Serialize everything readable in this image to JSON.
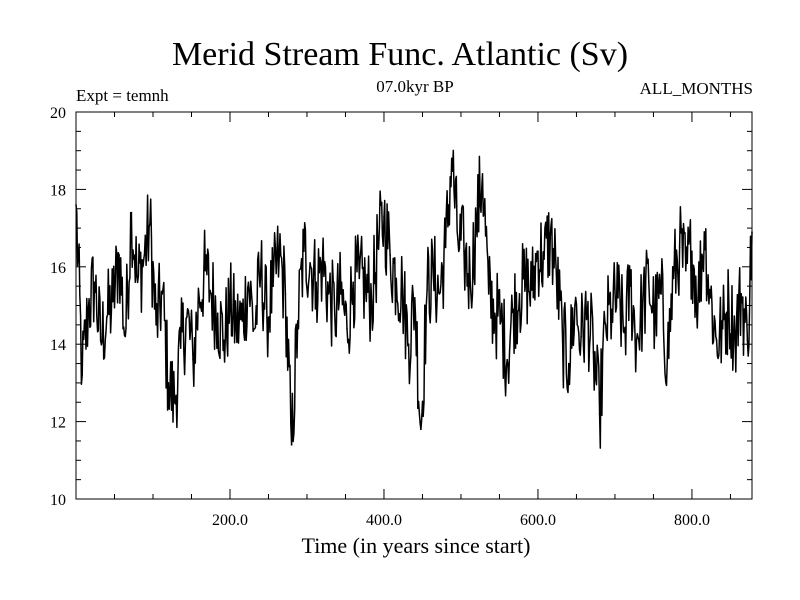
{
  "chart_data": {
    "type": "line",
    "title": "Merid Stream Func. Atlantic (Sv)",
    "subtitle": "07.0kyr BP",
    "left_label": "Expt = temnh",
    "right_label": "ALL_MONTHS",
    "xlabel": "Time (in years since start)",
    "ylabel": "",
    "xlim": [
      0,
      878
    ],
    "ylim": [
      10,
      20
    ],
    "xticks_labeled": [
      200,
      400,
      600,
      800
    ],
    "xtick_labels": [
      "200.0",
      "400.0",
      "600.0",
      "800.0"
    ],
    "yticks": [
      10,
      12,
      14,
      16,
      18,
      20
    ],
    "ytick_labels": [
      "10",
      "12",
      "14",
      "16",
      "18",
      "20"
    ],
    "series": [
      {
        "name": "Atlantic meridional stream function",
        "x": [
          0,
          8,
          16,
          24,
          32,
          40,
          48,
          56,
          64,
          72,
          80,
          88,
          96,
          104,
          112,
          120,
          128,
          136,
          144,
          152,
          160,
          168,
          176,
          184,
          192,
          200,
          208,
          216,
          224,
          232,
          240,
          248,
          256,
          264,
          272,
          280,
          288,
          296,
          304,
          312,
          320,
          328,
          336,
          344,
          352,
          360,
          368,
          376,
          384,
          392,
          400,
          408,
          416,
          424,
          432,
          440,
          448,
          456,
          464,
          472,
          480,
          488,
          496,
          504,
          512,
          520,
          528,
          536,
          544,
          552,
          560,
          568,
          576,
          584,
          592,
          600,
          608,
          616,
          624,
          632,
          640,
          648,
          656,
          664,
          672,
          680,
          688,
          696,
          704,
          712,
          720,
          728,
          736,
          744,
          752,
          760,
          768,
          776,
          784,
          792,
          800,
          808,
          816,
          824,
          832,
          840,
          848,
          856,
          864,
          872,
          878
        ],
        "values": [
          17.6,
          13.2,
          14.9,
          15.6,
          14.1,
          14.7,
          15.1,
          16.3,
          14.2,
          17.4,
          15.6,
          16.2,
          17.1,
          14.5,
          15.3,
          13.0,
          12.5,
          13.9,
          14.7,
          13.6,
          15.2,
          15.9,
          15.3,
          14.8,
          14.1,
          15.0,
          14.5,
          14.6,
          15.6,
          14.4,
          15.9,
          14.7,
          15.5,
          16.3,
          15.3,
          11.4,
          14.6,
          16.4,
          16.1,
          15.6,
          16.1,
          15.3,
          14.8,
          15.3,
          14.4,
          15.6,
          15.7,
          15.5,
          15.1,
          16.5,
          17.3,
          16.3,
          15.7,
          15.4,
          14.0,
          15.2,
          11.8,
          15.4,
          15.8,
          15.3,
          16.5,
          18.8,
          16.7,
          16.4,
          15.6,
          17.1,
          18.4,
          15.3,
          14.8,
          14.6,
          13.6,
          14.9,
          15.3,
          15.6,
          15.4,
          16.4,
          16.2,
          16.8,
          15.8,
          14.1,
          13.5,
          15.0,
          14.2,
          14.7,
          13.8,
          12.2,
          14.5,
          14.9,
          15.2,
          14.3,
          15.5,
          14.1,
          15.0,
          15.6,
          14.7,
          15.3,
          13.6,
          15.7,
          16.5,
          15.9,
          16.4,
          15.2,
          16.9,
          15.2,
          14.1,
          14.4,
          15.0,
          14.2,
          15.3,
          14.1,
          16.9
        ]
      }
    ]
  }
}
